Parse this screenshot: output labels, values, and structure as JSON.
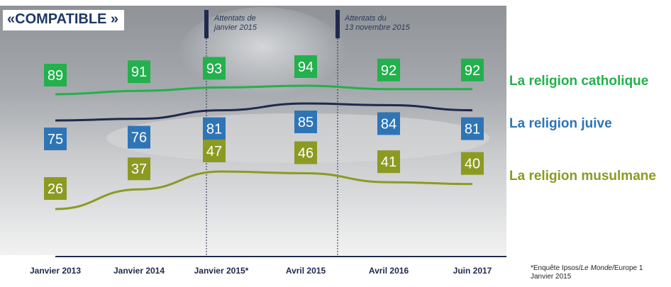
{
  "title": "«COMPATIBLE »",
  "events": [
    {
      "label_line1": "Attentats de",
      "label_line2": "janvier 2015"
    },
    {
      "label_line1": "Attentats du",
      "label_line2": "13 novembre 2015"
    }
  ],
  "footnote": {
    "line1_prefix": "*Enquête Ipsos/",
    "line1_italic": "Le Monde",
    "line1_suffix": "/Europe 1",
    "line2": "Janvier 2015"
  },
  "colors": {
    "catholique": "#22b14c",
    "juive": "#2e75b6",
    "musulmane": "#8c9a22",
    "juive_line": "#1f2a4d"
  },
  "chart_data": {
    "type": "line",
    "categories": [
      "Janvier 2013",
      "Janvier 2014",
      "Janvier 2015*",
      "Avril 2015",
      "Avril 2016",
      "Juin 2017"
    ],
    "series": [
      {
        "name": "La religion catholique",
        "values": [
          89,
          91,
          93,
          94,
          92,
          92
        ]
      },
      {
        "name": "La religion juive",
        "values": [
          75,
          76,
          81,
          85,
          84,
          81
        ]
      },
      {
        "name": "La religion musulmane",
        "values": [
          26,
          37,
          47,
          46,
          41,
          40
        ]
      }
    ]
  }
}
